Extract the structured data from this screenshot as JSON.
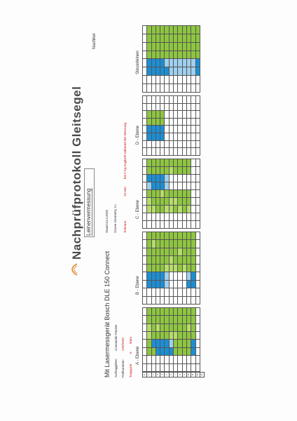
{
  "document": {
    "title": "Nachprüfprotokoll Gleitsegel",
    "subtitle": "Leinenvermessung",
    "device": "Mit Lasermessgerät  Bosch DLE 150 Connect",
    "auftraggeber_label": "Auftraggeber:",
    "auftraggeber_value": "Constantin Fässler",
    "pruefnummer_label": "Prüfnummer:",
    "pruefnummer_value": "220/2020",
    "trapgurte_label": "Trapgurte:",
    "trapgurte_a": "0",
    "trapgurte_b": "0mm",
    "stand": "Stand 24.3.2020",
    "glider": "Ozone Geometry 2 L",
    "toleranz_label": "Toleranz:",
    "toleranz_value": "10 mm",
    "toleranz_note": "bei 5 Kg Zugkraft während der Messung",
    "nachher": "Nachher"
  },
  "sections": [
    "A - Ebene",
    "B - Ebene",
    "C - Ebene",
    "D - Ebene",
    "Steuerleinen"
  ],
  "row_numbers": [
    "1",
    "2",
    "3",
    "4",
    "5",
    "6",
    "7",
    "8",
    "9",
    "10",
    "11",
    "12",
    "13"
  ],
  "header_cells": [
    "Nr",
    "SOLL",
    "IST",
    "Abw"
  ]
}
